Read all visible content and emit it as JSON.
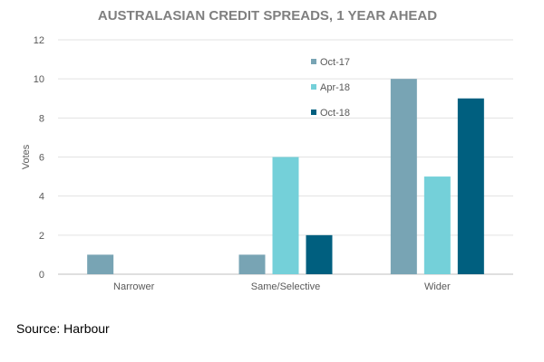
{
  "chart_data": {
    "type": "bar",
    "title": "AUSTRALASIAN CREDIT SPREADS, 1 YEAR AHEAD",
    "xlabel": "",
    "ylabel": "Votes",
    "categories": [
      "Narrower",
      "Same/Selective",
      "Wider"
    ],
    "series": [
      {
        "name": "Oct-17",
        "values": [
          1,
          1,
          10
        ],
        "color": "#78a4b4"
      },
      {
        "name": "Apr-18",
        "values": [
          0,
          6,
          5
        ],
        "color": "#74d0d9"
      },
      {
        "name": "Oct-18",
        "values": [
          0,
          2,
          9
        ],
        "color": "#005f7f"
      }
    ],
    "ylim": [
      0,
      12
    ],
    "yticks": [
      0,
      2,
      4,
      6,
      8,
      10,
      12
    ],
    "grid": true,
    "legend_position": "top-center"
  },
  "source": "Source: Harbour"
}
